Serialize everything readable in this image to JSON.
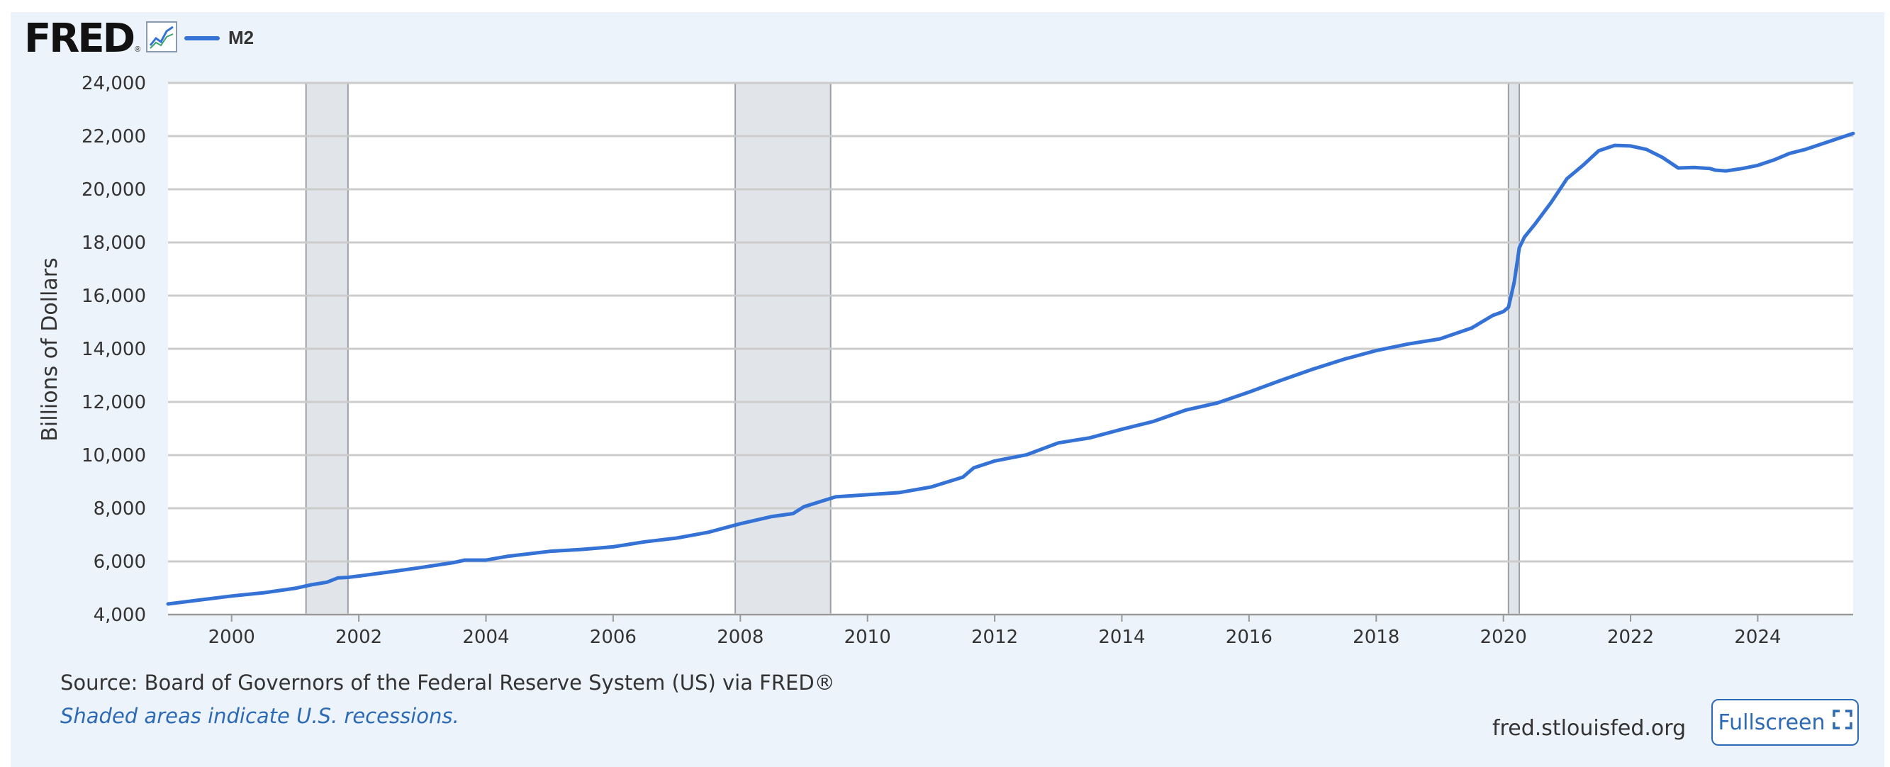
{
  "logo": {
    "text": "FRED",
    "reg": "®"
  },
  "legend": {
    "label": "M2",
    "color": "#3572d6"
  },
  "footer": {
    "source": "Source: Board of Governors of the Federal Reserve System (US) via FRED®",
    "shaded_note": "Shaded areas indicate U.S. recessions.",
    "site": "fred.stlouisfed.org",
    "fullscreen_label": "Fullscreen"
  },
  "colors": {
    "line": "#3572d6",
    "recession": "#e1e5ea",
    "grid": "#cccccc",
    "background": "#edf3fa",
    "link": "#2d6ab6"
  },
  "chart_data": {
    "type": "line",
    "title": "M2",
    "xlabel": "",
    "ylabel": "Billions of Dollars",
    "xlim": [
      1999.0,
      2025.5
    ],
    "ylim": [
      4000,
      24000
    ],
    "y_ticks": [
      4000,
      6000,
      8000,
      10000,
      12000,
      14000,
      16000,
      18000,
      20000,
      22000,
      24000
    ],
    "y_tick_labels": [
      "4,000",
      "6,000",
      "8,000",
      "10,000",
      "12,000",
      "14,000",
      "16,000",
      "18,000",
      "20,000",
      "22,000",
      "24,000"
    ],
    "x_ticks": [
      2000,
      2002,
      2004,
      2006,
      2008,
      2010,
      2012,
      2014,
      2016,
      2018,
      2020,
      2022,
      2024
    ],
    "x_tick_labels": [
      "2000",
      "2002",
      "2004",
      "2006",
      "2008",
      "2010",
      "2012",
      "2014",
      "2016",
      "2018",
      "2020",
      "2022",
      "2024"
    ],
    "recessions": [
      [
        2001.17,
        2001.83
      ],
      [
        2007.92,
        2009.42
      ],
      [
        2020.08,
        2020.25
      ]
    ],
    "series": [
      {
        "name": "M2",
        "x": [
          1999.0,
          1999.5,
          2000.0,
          2000.25,
          2000.5,
          2001.0,
          2001.25,
          2001.5,
          2001.67,
          2001.83,
          2002.0,
          2002.5,
          2003.0,
          2003.5,
          2003.67,
          2004.0,
          2004.33,
          2005.0,
          2005.5,
          2006.0,
          2006.5,
          2007.0,
          2007.5,
          2008.0,
          2008.5,
          2008.83,
          2009.0,
          2009.5,
          2010.0,
          2010.5,
          2011.0,
          2011.5,
          2011.67,
          2012.0,
          2012.5,
          2013.0,
          2013.5,
          2014.0,
          2014.5,
          2015.0,
          2015.5,
          2016.0,
          2016.5,
          2017.0,
          2017.5,
          2018.0,
          2018.5,
          2019.0,
          2019.5,
          2019.83,
          2020.0,
          2020.08,
          2020.17,
          2020.25,
          2020.33,
          2020.5,
          2020.75,
          2021.0,
          2021.25,
          2021.5,
          2021.75,
          2022.0,
          2022.25,
          2022.5,
          2022.75,
          2023.0,
          2023.25,
          2023.33,
          2023.5,
          2023.75,
          2024.0,
          2024.25,
          2024.5,
          2024.75,
          2025.0,
          2025.25,
          2025.5
        ],
        "values": [
          4400,
          4550,
          4700,
          4760,
          4820,
          4990,
          5120,
          5220,
          5380,
          5400,
          5450,
          5610,
          5780,
          5960,
          6050,
          6050,
          6190,
          6380,
          6450,
          6550,
          6740,
          6880,
          7100,
          7420,
          7690,
          7800,
          8060,
          8430,
          8510,
          8590,
          8800,
          9170,
          9520,
          9780,
          10010,
          10460,
          10650,
          10970,
          11270,
          11690,
          11960,
          12370,
          12810,
          13230,
          13610,
          13930,
          14180,
          14370,
          14780,
          15250,
          15400,
          15560,
          16500,
          17800,
          18200,
          18700,
          19500,
          20400,
          20900,
          21450,
          21650,
          21630,
          21500,
          21200,
          20800,
          20820,
          20780,
          20720,
          20690,
          20780,
          20900,
          21100,
          21350,
          21500,
          21700,
          21900,
          22100
        ]
      }
    ]
  }
}
